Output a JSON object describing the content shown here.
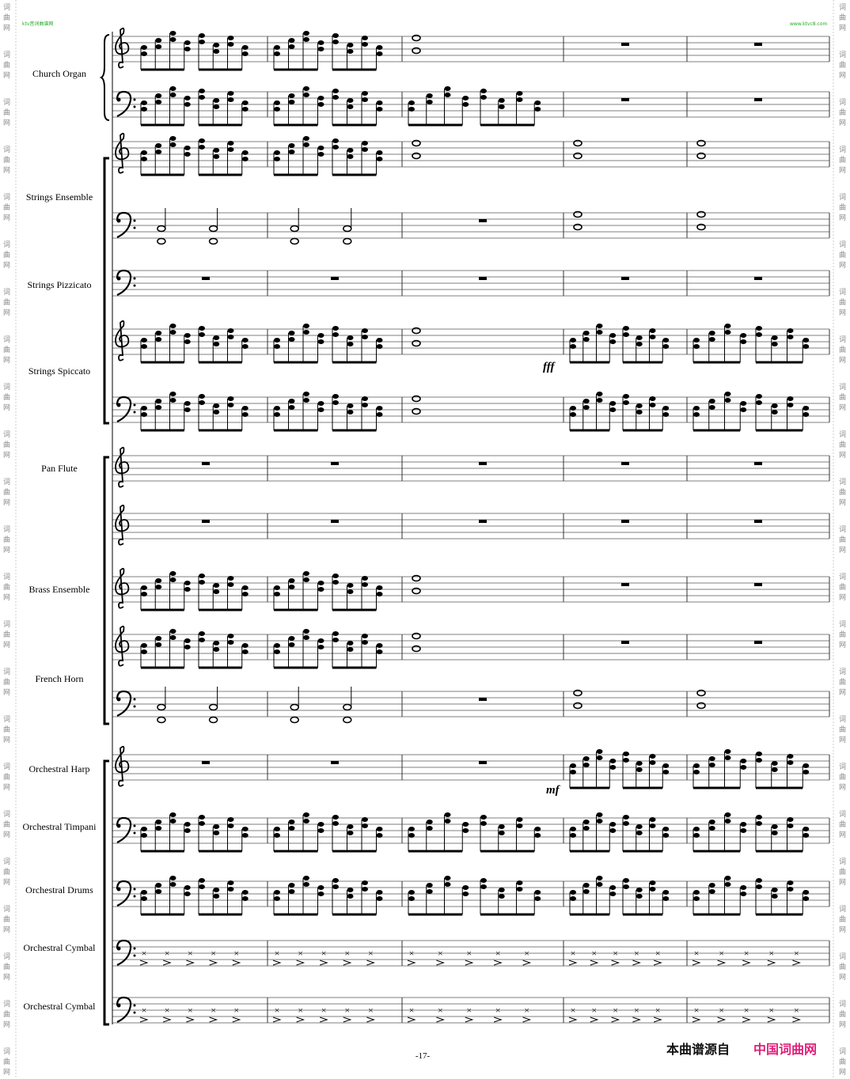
{
  "header": {
    "left_watermark": "ktv音词曲谱网",
    "right_watermark": "www.ktvc8.com"
  },
  "side_watermark": [
    "词",
    "曲",
    "网"
  ],
  "instruments": [
    "Church Organ",
    "Strings Ensemble",
    "Strings Pizzicato",
    "Strings Spiccato",
    "Pan Flute",
    "Brass Ensemble",
    "French Horn",
    "Orchestral Harp",
    "Orchestral Timpani",
    "Orchestral Drums",
    "Orchestral Cymbal",
    "Orchestral Cymbal"
  ],
  "dynamics": [
    "fff",
    "mf"
  ],
  "footer": {
    "page_number": "-17-",
    "source_prefix": "本曲谱源自",
    "source_name": "中国词曲网"
  }
}
